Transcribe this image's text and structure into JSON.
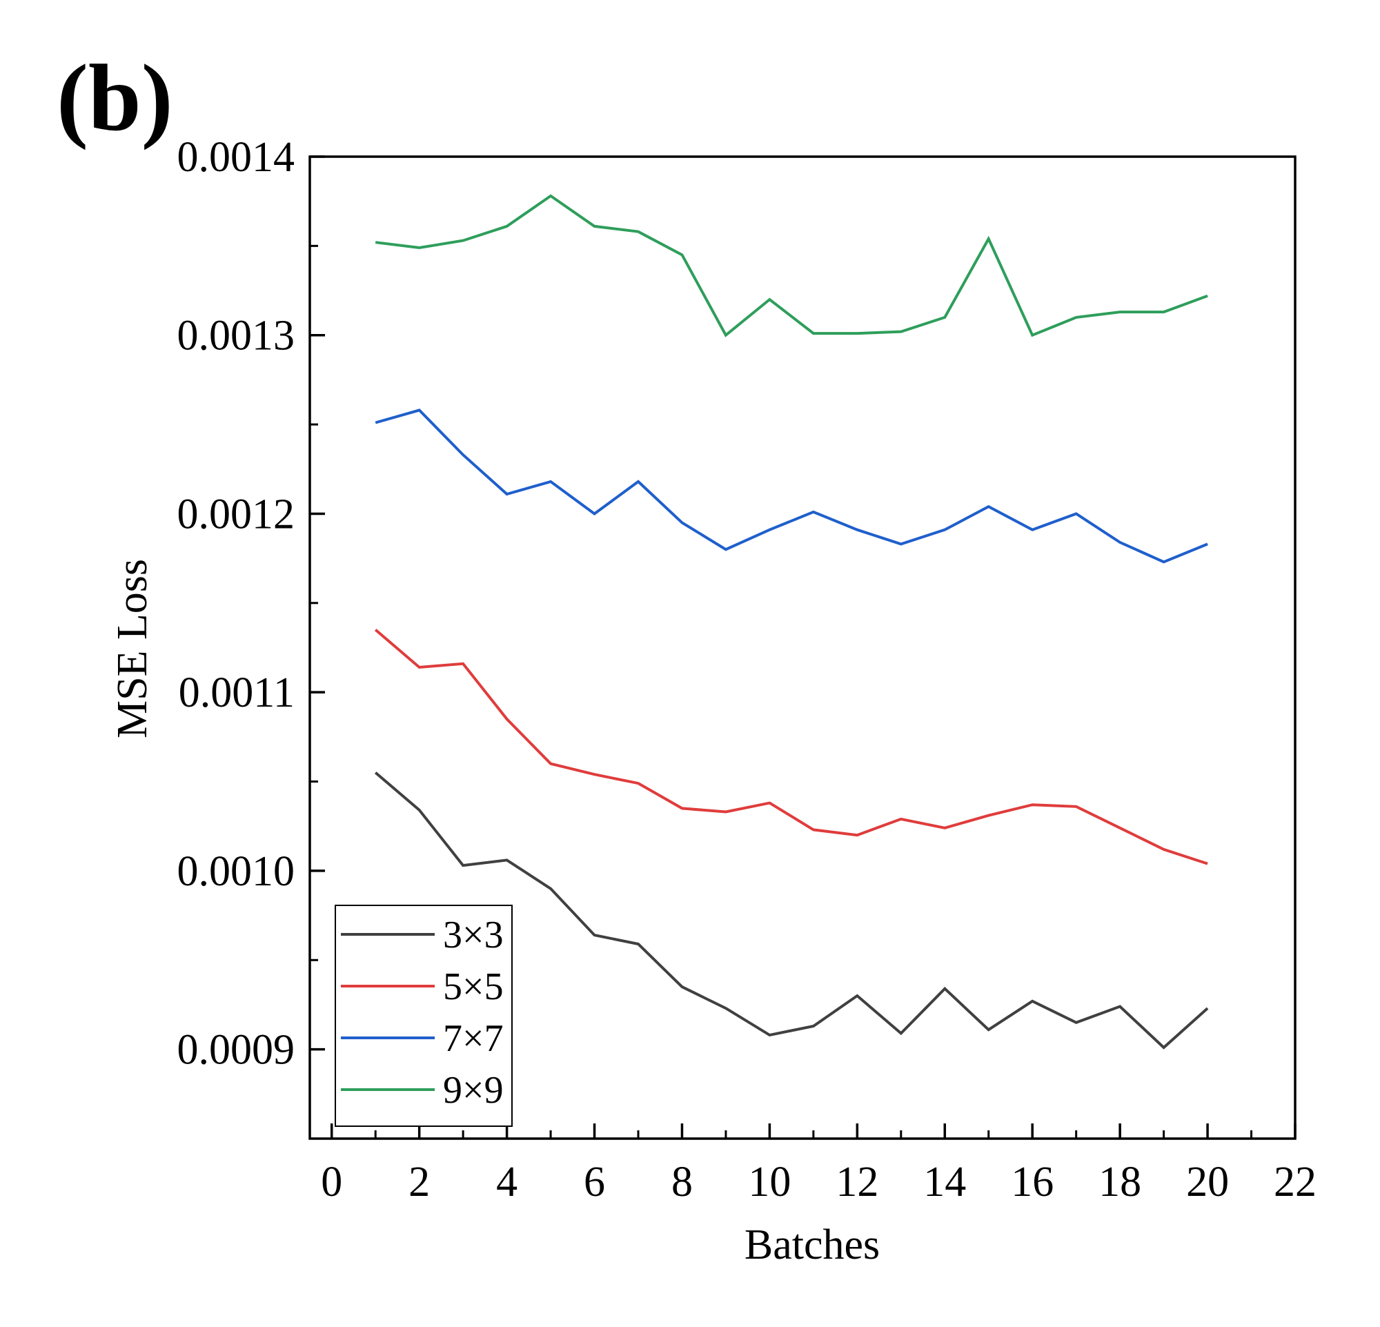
{
  "panel_label": "(b)",
  "chart_data": {
    "type": "line",
    "title": "",
    "xlabel": "Batches",
    "ylabel": "MSE Loss",
    "xlim": [
      -0.5,
      22
    ],
    "ylim": [
      0.00085,
      0.0014
    ],
    "x_ticks": [
      0,
      2,
      4,
      6,
      8,
      10,
      12,
      14,
      16,
      18,
      20,
      22
    ],
    "x_tick_labels": [
      "0",
      "2",
      "4",
      "6",
      "8",
      "10",
      "12",
      "14",
      "16",
      "18",
      "20",
      "22"
    ],
    "y_ticks": [
      0.0009,
      0.001,
      0.0011,
      0.0012,
      0.0013,
      0.0014
    ],
    "y_tick_labels": [
      "0.0009",
      "0.0010",
      "0.0011",
      "0.0012",
      "0.0013",
      "0.0014"
    ],
    "grid": false,
    "legend_position": "bottom-left",
    "x": [
      1,
      2,
      3,
      4,
      5,
      6,
      7,
      8,
      9,
      10,
      11,
      12,
      13,
      14,
      15,
      16,
      17,
      18,
      19,
      20
    ],
    "series": [
      {
        "name": "3×3",
        "color": "#404040",
        "values": [
          0.001055,
          0.001034,
          0.001003,
          0.001006,
          0.00099,
          0.000964,
          0.000959,
          0.000935,
          0.000923,
          0.000908,
          0.000913,
          0.00093,
          0.000909,
          0.000934,
          0.000911,
          0.000927,
          0.000915,
          0.000924,
          0.000901,
          0.000923
        ]
      },
      {
        "name": "5×5",
        "color": "#e03c3c",
        "values": [
          0.001135,
          0.001114,
          0.001116,
          0.001085,
          0.00106,
          0.001054,
          0.001049,
          0.001035,
          0.001033,
          0.001038,
          0.001023,
          0.00102,
          0.001029,
          0.001024,
          0.001031,
          0.001037,
          0.001036,
          0.001024,
          0.001012,
          0.001004
        ]
      },
      {
        "name": "7×7",
        "color": "#1f5fcc",
        "values": [
          0.001251,
          0.001258,
          0.001233,
          0.001211,
          0.001218,
          0.0012,
          0.001218,
          0.001195,
          0.00118,
          0.001191,
          0.001201,
          0.001191,
          0.001183,
          0.001191,
          0.001204,
          0.001191,
          0.0012,
          0.001184,
          0.001173,
          0.001183
        ]
      },
      {
        "name": "9×9",
        "color": "#2e9e5b",
        "values": [
          0.001352,
          0.001349,
          0.001353,
          0.001361,
          0.001378,
          0.001361,
          0.001358,
          0.001345,
          0.0013,
          0.00132,
          0.001301,
          0.001301,
          0.001302,
          0.00131,
          0.001354,
          0.0013,
          0.00131,
          0.001313,
          0.001313,
          0.001322
        ]
      }
    ]
  }
}
